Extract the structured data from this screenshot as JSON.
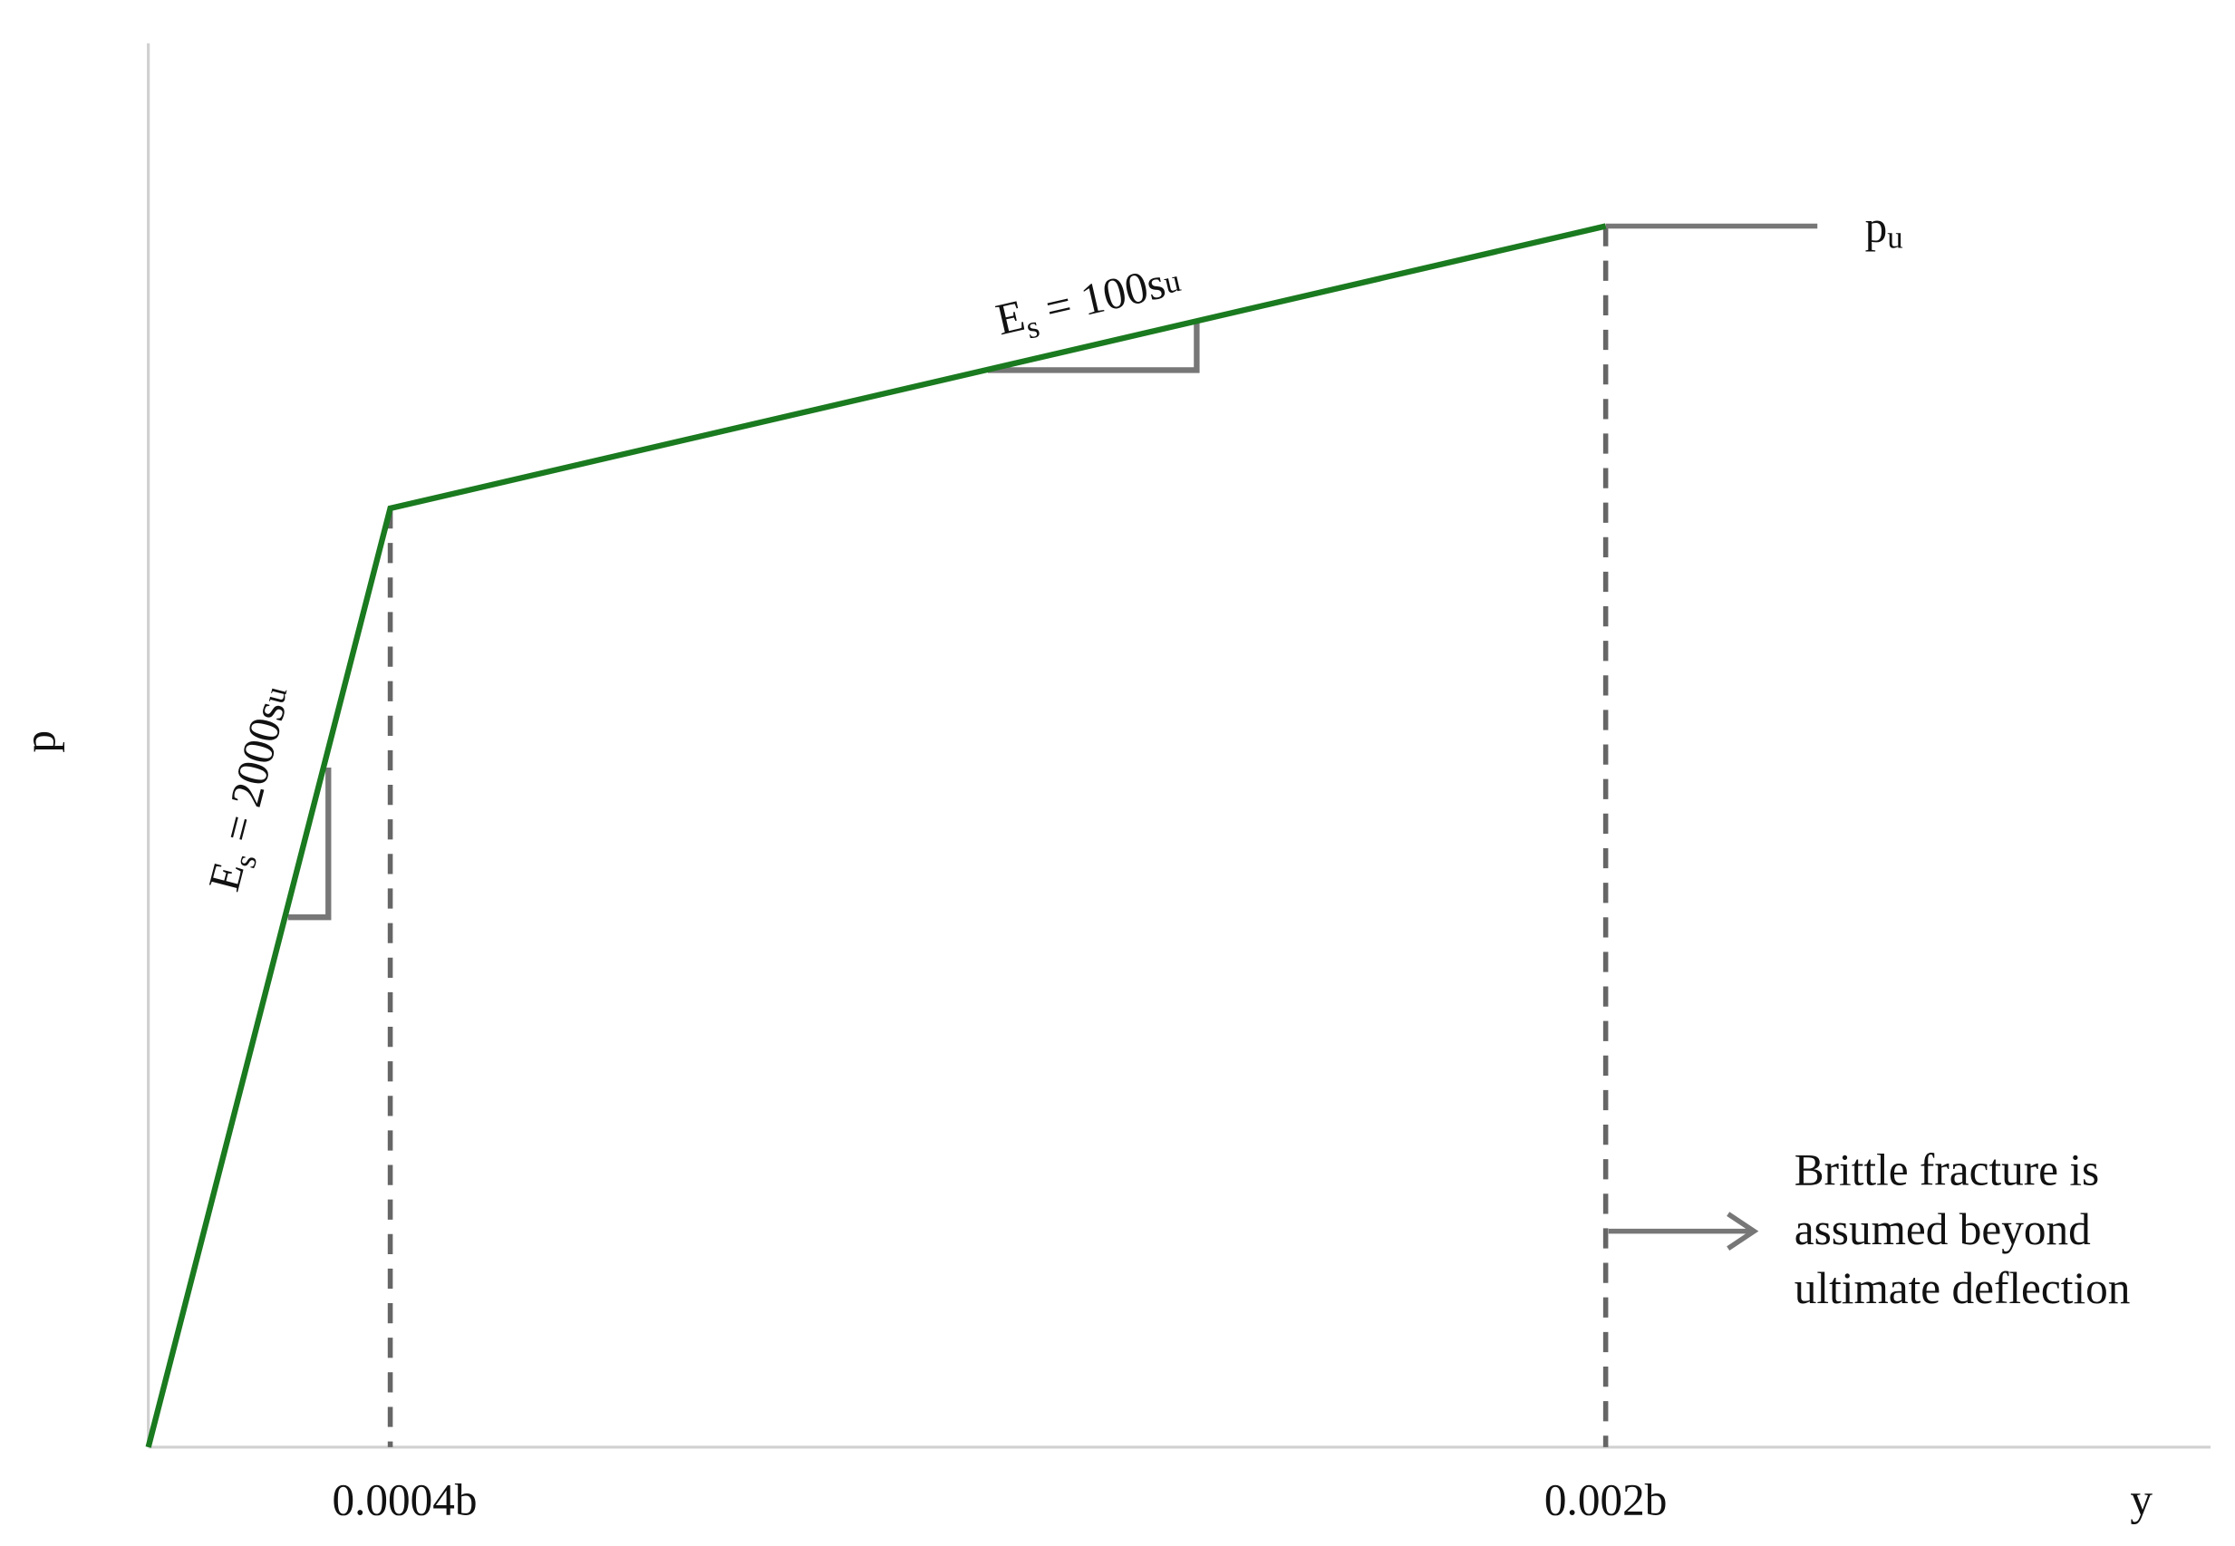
{
  "axes": {
    "y_label": "p",
    "x_label": "y"
  },
  "x_markers": [
    "0.0004b",
    "0.002b"
  ],
  "slope_labels": [
    [
      "E",
      "s",
      " = 2000s",
      "u"
    ],
    [
      "E",
      "s",
      " = 100s",
      "u"
    ]
  ],
  "ultimate_label": [
    "p",
    "u"
  ],
  "annotation": [
    "Brittle fracture is",
    "assumed beyond",
    "ultimate deflection"
  ]
}
